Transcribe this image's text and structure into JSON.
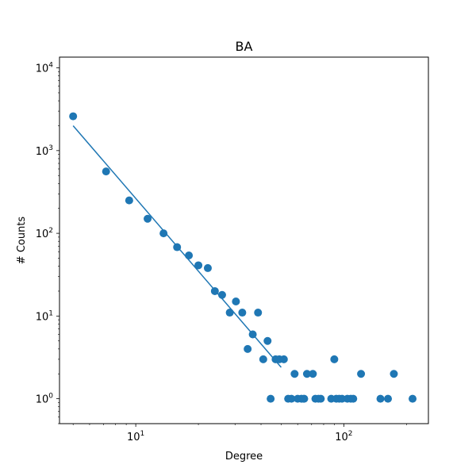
{
  "chart_data": {
    "type": "scatter",
    "title": "BA",
    "xlabel": "Degree",
    "ylabel": "# Counts",
    "xscale": "log",
    "yscale": "log",
    "xlim": [
      4.3,
      255
    ],
    "ylim": [
      0.5,
      13500
    ],
    "grid": false,
    "colors": {
      "series": "#1f77b4"
    },
    "x_ticks": [
      {
        "value": 10,
        "label": "10",
        "exp": "1"
      },
      {
        "value": 100,
        "label": "10",
        "exp": "2"
      }
    ],
    "y_ticks": [
      {
        "value": 1,
        "label": "10",
        "exp": "0"
      },
      {
        "value": 10,
        "label": "10",
        "exp": "1"
      },
      {
        "value": 100,
        "label": "10",
        "exp": "2"
      },
      {
        "value": 1000,
        "label": "10",
        "exp": "3"
      },
      {
        "value": 10000,
        "label": "10",
        "exp": "4"
      }
    ],
    "series": [
      {
        "kind": "points",
        "points": [
          [
            5,
            2600
          ],
          [
            7.2,
            560
          ],
          [
            9.3,
            250
          ],
          [
            11.4,
            150
          ],
          [
            13.6,
            100
          ],
          [
            15.8,
            68
          ],
          [
            18,
            54
          ],
          [
            20,
            41
          ],
          [
            22.2,
            38
          ],
          [
            24,
            20
          ],
          [
            26,
            18
          ],
          [
            28.3,
            11
          ],
          [
            30.3,
            15
          ],
          [
            32.5,
            11
          ],
          [
            34.5,
            4
          ],
          [
            36.5,
            6
          ],
          [
            38.7,
            11
          ],
          [
            41,
            3
          ],
          [
            43,
            5
          ],
          [
            44.5,
            1
          ],
          [
            47,
            3
          ],
          [
            49,
            3
          ],
          [
            51.5,
            3
          ],
          [
            54,
            1
          ],
          [
            56,
            1
          ],
          [
            58,
            2
          ],
          [
            60,
            1
          ],
          [
            62.5,
            1
          ],
          [
            64.5,
            1
          ],
          [
            66.5,
            2
          ],
          [
            71,
            2
          ],
          [
            73,
            1
          ],
          [
            75.5,
            1
          ],
          [
            77.5,
            1
          ],
          [
            87,
            1
          ],
          [
            90,
            3
          ],
          [
            92,
            1
          ],
          [
            95,
            1
          ],
          [
            98,
            1
          ],
          [
            104,
            1
          ],
          [
            108,
            1
          ],
          [
            111,
            1
          ],
          [
            121,
            2
          ],
          [
            150,
            1
          ],
          [
            163,
            1
          ],
          [
            174,
            2
          ],
          [
            214,
            1
          ]
        ]
      },
      {
        "kind": "line",
        "points": [
          [
            5,
            2000
          ],
          [
            50,
            2.4
          ]
        ]
      }
    ]
  }
}
